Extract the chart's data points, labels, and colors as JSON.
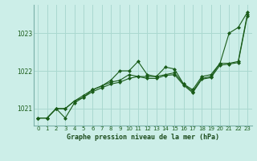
{
  "title": "Graphe pression niveau de la mer (hPa)",
  "bg_color": "#cceee8",
  "grid_color": "#aad8d0",
  "line_color": "#1a5c1a",
  "xlim": [
    -0.5,
    23.5
  ],
  "ylim": [
    1020.55,
    1023.75
  ],
  "yticks": [
    1021,
    1022,
    1023
  ],
  "xticks": [
    0,
    1,
    2,
    3,
    4,
    5,
    6,
    7,
    8,
    9,
    10,
    11,
    12,
    13,
    14,
    15,
    16,
    17,
    18,
    19,
    20,
    21,
    22,
    23
  ],
  "series": [
    [
      1020.75,
      1020.75,
      1021.0,
      1020.75,
      1021.15,
      1021.3,
      1021.5,
      1021.6,
      1021.75,
      1022.0,
      1022.0,
      1022.25,
      1021.9,
      1021.85,
      1022.1,
      1022.05,
      1021.65,
      1021.5,
      1021.85,
      1021.9,
      1022.2,
      1023.0,
      1023.15,
      1023.55
    ],
    [
      1020.75,
      1020.75,
      1021.0,
      1021.0,
      1021.2,
      1021.35,
      1021.5,
      1021.6,
      1021.7,
      1021.75,
      1021.9,
      1021.85,
      1021.85,
      1021.85,
      1021.9,
      1021.95,
      1021.65,
      1021.45,
      1021.8,
      1021.85,
      1022.2,
      1022.2,
      1022.25,
      1023.5
    ],
    [
      1020.75,
      1020.75,
      1021.0,
      1021.0,
      1021.2,
      1021.3,
      1021.45,
      1021.55,
      1021.65,
      1021.7,
      1021.8,
      1021.85,
      1021.8,
      1021.8,
      1021.88,
      1021.9,
      1021.62,
      1021.42,
      1021.78,
      1021.82,
      1022.15,
      1022.18,
      1022.22,
      1023.45
    ]
  ]
}
